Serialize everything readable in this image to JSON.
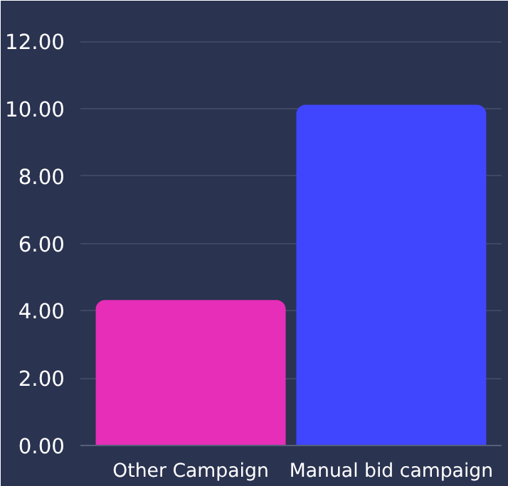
{
  "chart_data": {
    "type": "bar",
    "categories": [
      "Other Campaign",
      "Manual bid campaign"
    ],
    "values": [
      4.3,
      10.1
    ],
    "colors": [
      "#e62eb8",
      "#4046fd"
    ],
    "ylim": [
      0,
      13
    ],
    "yticks": [
      {
        "value": 0,
        "label": "0.00"
      },
      {
        "value": 2,
        "label": "2.00"
      },
      {
        "value": 4,
        "label": "4.00"
      },
      {
        "value": 6,
        "label": "6.00"
      },
      {
        "value": 8,
        "label": "8.00"
      },
      {
        "value": 10,
        "label": "10.00"
      },
      {
        "value": 12,
        "label": "12.00"
      }
    ],
    "grid": "y"
  }
}
